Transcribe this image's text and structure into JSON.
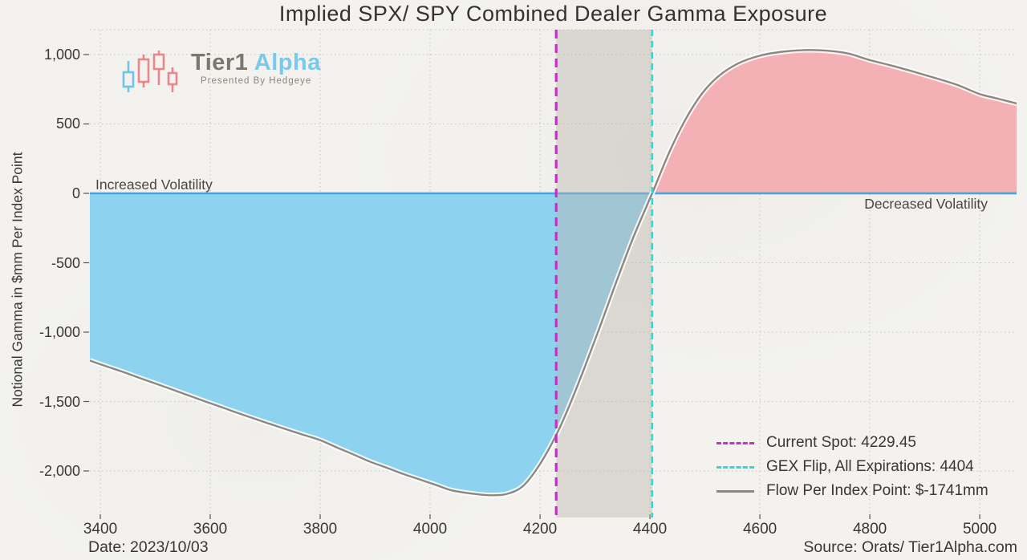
{
  "title": "Implied SPX/ SPY Combined Dealer Gamma Exposure",
  "logo": {
    "brand": "Tier1",
    "brand2": " Alpha",
    "tagline": "Presented By Hedgeye"
  },
  "axes": {
    "y_label": "Notional Gamma in $mm Per Index Point",
    "y_ticks": {
      "values": [
        1000,
        500,
        0,
        -500,
        -1000,
        -1500,
        -2000
      ],
      "labels": [
        "1,000",
        "500",
        "0",
        "-500",
        "-1,000",
        "-1,500",
        "-2,000"
      ]
    },
    "x_ticks": {
      "values": [
        3400,
        3600,
        3800,
        4000,
        4200,
        4400,
        4600,
        4800,
        5000
      ],
      "labels": [
        "3400",
        "3600",
        "3800",
        "4000",
        "4200",
        "4400",
        "4600",
        "4800",
        "5000"
      ]
    }
  },
  "annotations": {
    "left": "Increased Volatility",
    "right": "Decreased Volatility"
  },
  "legend": {
    "items": [
      {
        "label": "Current Spot: 4229.45",
        "color": "#c42fc4",
        "style": "dashed"
      },
      {
        "label": "GEX Flip, All Expirations: 4404",
        "color": "#1fdede",
        "style": "dashed"
      },
      {
        "label": "Flow Per Index Point: $-1741mm",
        "color": "#8d8781",
        "style": "solid"
      }
    ]
  },
  "footer": {
    "date": "Date: 2023/10/03",
    "source": "Source: Orats/ Tier1Alpha.com"
  },
  "chart_data": {
    "type": "area",
    "title": "Implied SPX/ SPY Combined Dealer Gamma Exposure",
    "ylabel": "Notional Gamma in $mm Per Index Point",
    "xlim": [
      3381,
      5067
    ],
    "ylim": [
      -2335,
      1179
    ],
    "grid": true,
    "legend_position": "lower right",
    "current_spot": 4229.45,
    "gex_flip": 4404,
    "flow_per_index_point_mm": -1741,
    "band": [
      4229.45,
      4404
    ],
    "zero_line": 0,
    "series": [
      {
        "name": "Flow Per Index Point",
        "points": [
          [
            3381,
            -1205
          ],
          [
            3410,
            -1245
          ],
          [
            3440,
            -1285
          ],
          [
            3470,
            -1328
          ],
          [
            3500,
            -1370
          ],
          [
            3530,
            -1412
          ],
          [
            3560,
            -1455
          ],
          [
            3590,
            -1498
          ],
          [
            3620,
            -1540
          ],
          [
            3650,
            -1582
          ],
          [
            3680,
            -1623
          ],
          [
            3710,
            -1663
          ],
          [
            3740,
            -1702
          ],
          [
            3770,
            -1740
          ],
          [
            3800,
            -1778
          ],
          [
            3830,
            -1830
          ],
          [
            3860,
            -1880
          ],
          [
            3890,
            -1932
          ],
          [
            3920,
            -1975
          ],
          [
            3950,
            -2020
          ],
          [
            3980,
            -2060
          ],
          [
            4010,
            -2100
          ],
          [
            4040,
            -2140
          ],
          [
            4080,
            -2165
          ],
          [
            4110,
            -2175
          ],
          [
            4140,
            -2165
          ],
          [
            4170,
            -2105
          ],
          [
            4200,
            -1950
          ],
          [
            4229.45,
            -1741
          ],
          [
            4255,
            -1515
          ],
          [
            4280,
            -1265
          ],
          [
            4310,
            -950
          ],
          [
            4340,
            -625
          ],
          [
            4370,
            -315
          ],
          [
            4404,
            0
          ],
          [
            4435,
            295
          ],
          [
            4465,
            535
          ],
          [
            4495,
            720
          ],
          [
            4525,
            845
          ],
          [
            4560,
            935
          ],
          [
            4600,
            992
          ],
          [
            4640,
            1020
          ],
          [
            4680,
            1032
          ],
          [
            4720,
            1028
          ],
          [
            4760,
            1008
          ],
          [
            4800,
            960
          ],
          [
            4840,
            920
          ],
          [
            4880,
            876
          ],
          [
            4920,
            830
          ],
          [
            4960,
            780
          ],
          [
            5000,
            715
          ],
          [
            5030,
            685
          ],
          [
            5067,
            648
          ]
        ]
      }
    ],
    "colors": {
      "negative_fill": "#8dd3ef",
      "positive_fill": "#f3b1b5",
      "curve": "#8d8781",
      "curve_glow": "#ffffff",
      "zero_line": "#47a2e0",
      "current_spot": "#c42fc4",
      "gex_flip": "#1fdede",
      "band": "rgba(185,180,172,0.42)",
      "grid": "#c6c2bc",
      "tick": "#5a564f",
      "text": "#3b3733",
      "background": "#f3f2ee"
    }
  }
}
